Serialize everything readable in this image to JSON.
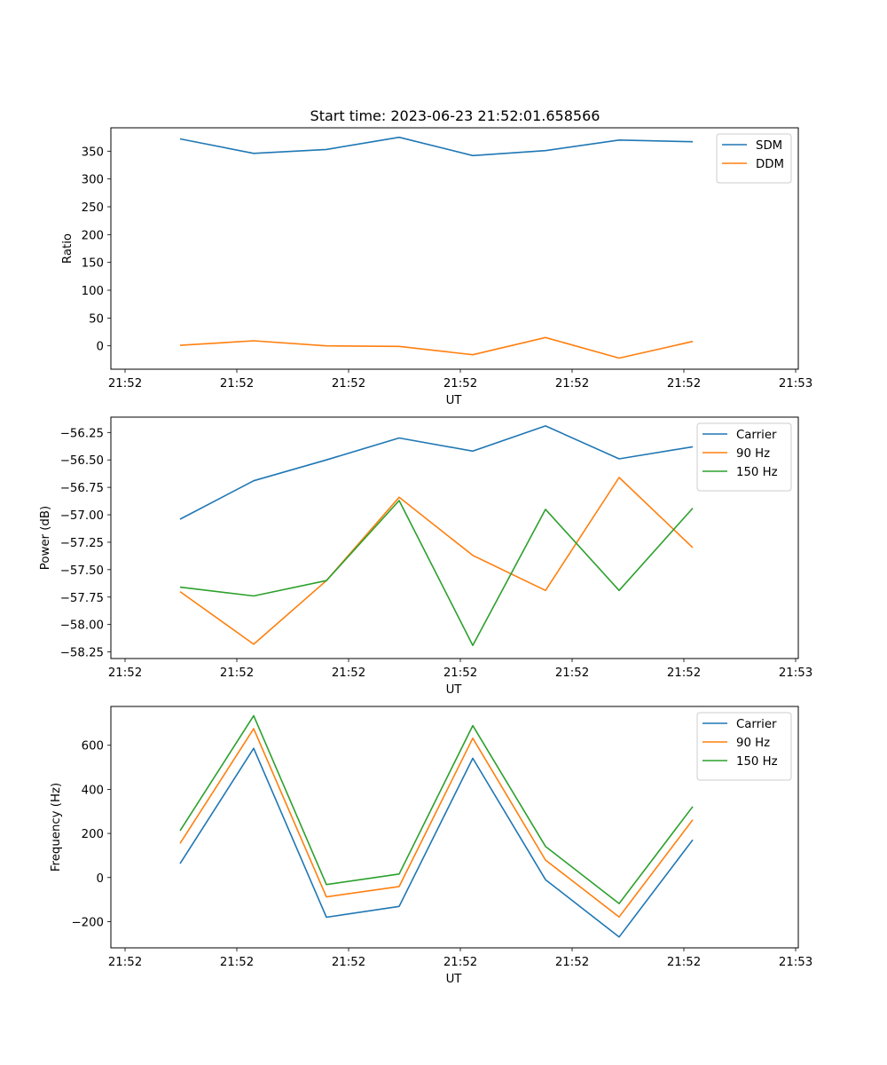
{
  "figure": {
    "title": "Start time: 2023-06-23 21:52:01.658566"
  },
  "chart_data": [
    {
      "type": "line",
      "title": "Start time: 2023-06-23 21:52:01.658566",
      "xlabel": "UT",
      "ylabel": "Ratio",
      "x_tick_labels": [
        "21:52",
        "21:52",
        "21:52",
        "21:52",
        "21:52",
        "21:52",
        "21:52",
        "21:53"
      ],
      "y_ticks": [
        0,
        50,
        100,
        150,
        200,
        250,
        300,
        350
      ],
      "ylim": [
        -42,
        392
      ],
      "grid": false,
      "legend_position": "top-right",
      "series": [
        {
          "name": "SDM",
          "color": "#1f77b4",
          "values": [
            372,
            346,
            353,
            375,
            342,
            351,
            370,
            367
          ]
        },
        {
          "name": "DDM",
          "color": "#ff7f0e",
          "values": [
            1,
            9,
            0,
            -1,
            -16,
            15,
            -22,
            8
          ]
        }
      ]
    },
    {
      "type": "line",
      "title": "",
      "xlabel": "UT",
      "ylabel": "Power (dB)",
      "x_tick_labels": [
        "21:52",
        "21:52",
        "21:52",
        "21:52",
        "21:52",
        "21:52",
        "21:52",
        "21:53"
      ],
      "y_ticks": [
        -58.25,
        -58.0,
        -57.75,
        -57.5,
        -57.25,
        -57.0,
        -56.75,
        -56.5,
        -56.25
      ],
      "y_tick_labels": [
        "−58.25",
        "−58.00",
        "−57.75",
        "−57.50",
        "−57.25",
        "−57.00",
        "−56.75",
        "−56.50",
        "−56.25"
      ],
      "ylim": [
        -58.31,
        -56.11
      ],
      "grid": false,
      "legend_position": "top-right",
      "series": [
        {
          "name": "Carrier",
          "color": "#1f77b4",
          "values": [
            -57.04,
            -56.69,
            -56.5,
            -56.3,
            -56.42,
            -56.19,
            -56.49,
            -56.38
          ]
        },
        {
          "name": "90 Hz",
          "color": "#ff7f0e",
          "values": [
            -57.7,
            -58.18,
            -57.6,
            -56.84,
            -57.37,
            -57.69,
            -56.66,
            -57.3
          ]
        },
        {
          "name": "150 Hz",
          "color": "#2ca02c",
          "values": [
            -57.66,
            -57.74,
            -57.6,
            -56.87,
            -58.19,
            -56.95,
            -57.69,
            -56.94
          ]
        }
      ]
    },
    {
      "type": "line",
      "title": "",
      "xlabel": "UT",
      "ylabel": "Frequency (Hz)",
      "x_tick_labels": [
        "21:52",
        "21:52",
        "21:52",
        "21:52",
        "21:52",
        "21:52",
        "21:52",
        "21:53"
      ],
      "y_ticks": [
        -200,
        0,
        200,
        400,
        600
      ],
      "y_tick_labels": [
        "−200",
        "0",
        "200",
        "400",
        "600"
      ],
      "ylim": [
        -319,
        776
      ],
      "grid": false,
      "legend_position": "top-right",
      "series": [
        {
          "name": "Carrier",
          "color": "#1f77b4",
          "values": [
            63,
            586,
            -180,
            -131,
            541,
            -10,
            -270,
            171
          ]
        },
        {
          "name": "90 Hz",
          "color": "#ff7f0e",
          "values": [
            155,
            675,
            -88,
            -41,
            632,
            79,
            -179,
            262
          ]
        },
        {
          "name": "150 Hz",
          "color": "#2ca02c",
          "values": [
            212,
            734,
            -32,
            16,
            689,
            141,
            -118,
            322
          ]
        }
      ]
    }
  ]
}
